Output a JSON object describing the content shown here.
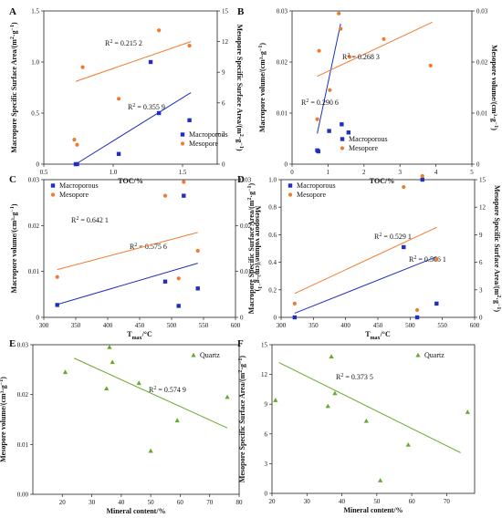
{
  "chart_data": [
    {
      "id": "A",
      "type": "scatter",
      "panel_label": "A",
      "xlabel": "TOC/%",
      "ylabel": "Macropore Specific Surface Area/(m²·g⁻¹)",
      "ylabel_right": "Mesopore Specific Surface Area/(m²·g⁻¹)",
      "xlim": [
        0.5,
        1.75
      ],
      "xticks": [
        "0.5",
        "1.0",
        "1.5"
      ],
      "xtick_values": [
        0.5,
        1.0,
        1.5
      ],
      "ylim": [
        0,
        1.5
      ],
      "yticks": [
        "0",
        "0.5",
        "1.0",
        "1.5"
      ],
      "ytick_values": [
        0,
        0.5,
        1.0,
        1.5
      ],
      "ylim_right": [
        0,
        15
      ],
      "yticks_right": [
        "0",
        "3",
        "6",
        "9",
        "12",
        "15"
      ],
      "ytick_values_right": [
        0,
        3,
        6,
        9,
        12,
        15
      ],
      "legend": [
        "Macroporous",
        "Mesopore"
      ],
      "series": [
        {
          "name": "Macroporous",
          "color": "#1f2fbf",
          "marker": "square",
          "axis": "left",
          "x": [
            0.73,
            0.74,
            1.04,
            1.27,
            1.33,
            1.55
          ],
          "y": [
            0.0,
            0.0,
            0.1,
            1.0,
            0.5,
            0.43
          ],
          "fit": {
            "x": [
              0.73,
              1.56
            ],
            "y": [
              0.0,
              0.7
            ]
          },
          "r2": "R² = 0.355 9"
        },
        {
          "name": "Mesopore",
          "color": "#f07b2e",
          "marker": "circle",
          "axis": "right",
          "x": [
            0.72,
            0.74,
            0.78,
            1.04,
            1.33,
            1.55
          ],
          "y": [
            2.4,
            1.9,
            9.5,
            6.4,
            13.1,
            11.6
          ],
          "fit": {
            "x": [
              0.73,
              1.56
            ],
            "y": [
              8.1,
              12.0
            ]
          },
          "r2": "R² = 0.215 2"
        }
      ]
    },
    {
      "id": "B",
      "type": "scatter",
      "panel_label": "B",
      "xlabel": "TOC/%",
      "ylabel": "Macropore  volume/(cm³·g⁻¹)",
      "ylabel_right": "Mesopore volume/(cm³·g⁻¹)",
      "xlim": [
        0,
        5
      ],
      "xticks": [
        "0",
        "1",
        "2",
        "3",
        "4",
        "5"
      ],
      "xtick_values": [
        0,
        1,
        2,
        3,
        4,
        5
      ],
      "ylim": [
        0,
        0.03
      ],
      "yticks": [
        "0",
        "0.01",
        "0.02",
        "0.03"
      ],
      "ytick_values": [
        0,
        0.01,
        0.02,
        0.03
      ],
      "ylim_right": [
        0,
        0.03
      ],
      "yticks_right": [
        "0",
        "0.01",
        "0.02",
        "0.03"
      ],
      "ytick_values_right": [
        0,
        0.01,
        0.02,
        0.03
      ],
      "legend": [
        "Macroporous",
        "Mesopore"
      ],
      "series": [
        {
          "name": "Macroporous",
          "color": "#1f2fbf",
          "marker": "square",
          "axis": "left",
          "x": [
            0.7,
            0.73,
            1.03,
            1.38,
            1.57
          ],
          "y": [
            0.0027,
            0.0025,
            0.0065,
            0.0078,
            0.0062
          ],
          "fit": {
            "x": [
              0.7,
              1.35
            ],
            "y": [
              0.006,
              0.0275
            ]
          },
          "r2": "R² = 0.290 6"
        },
        {
          "name": "Mesopore",
          "color": "#f07b2e",
          "marker": "circle",
          "axis": "right",
          "x": [
            0.7,
            0.75,
            1.05,
            1.3,
            1.35,
            1.6,
            2.55,
            3.85
          ],
          "y": [
            0.0088,
            0.0222,
            0.0145,
            0.0295,
            0.0265,
            0.021,
            0.0245,
            0.0193
          ],
          "fit": {
            "x": [
              0.7,
              3.9
            ],
            "y": [
              0.0172,
              0.0278
            ]
          },
          "r2": "R² = 0.268 3"
        }
      ]
    },
    {
      "id": "C",
      "type": "scatter",
      "panel_label": "C",
      "xlabel": "Tmax/°C",
      "ylabel": "Macropore  volume/(cm³·g⁻¹)",
      "ylabel_right": "Mesopore volume/(cm³·g⁻¹)",
      "xlim": [
        300,
        600
      ],
      "xticks": [
        "300",
        "350",
        "400",
        "450",
        "500",
        "550",
        "600"
      ],
      "xtick_values": [
        300,
        350,
        400,
        450,
        500,
        550,
        600
      ],
      "ylim": [
        0,
        0.03
      ],
      "yticks": [
        "0",
        "0.01",
        "0.02",
        "0.03"
      ],
      "ytick_values": [
        0,
        0.01,
        0.02,
        0.03
      ],
      "ylim_right": [
        0,
        0.03
      ],
      "yticks_right": [
        "0",
        "0.01",
        "0.02",
        "0.03"
      ],
      "ytick_values_right": [
        0,
        0.01,
        0.02,
        0.03
      ],
      "legend": [
        "Macroporous",
        "Mesopore"
      ],
      "series": [
        {
          "name": "Macroporous",
          "color": "#1f2fbf",
          "marker": "square",
          "axis": "left",
          "x": [
            321,
            490,
            511,
            519,
            541
          ],
          "y": [
            0.0027,
            0.0078,
            0.0025,
            0.0265,
            0.0063
          ],
          "fit": {
            "x": [
              321,
              541
            ],
            "y": [
              0.0028,
              0.0118
            ]
          },
          "r2": "R² = 0.575 6"
        },
        {
          "name": "Mesopore",
          "color": "#f07b2e",
          "marker": "circle",
          "axis": "right",
          "x": [
            321,
            490,
            511,
            519,
            541
          ],
          "y": [
            0.0088,
            0.0265,
            0.0085,
            0.0295,
            0.0145
          ],
          "fit": {
            "x": [
              321,
              541
            ],
            "y": [
              0.0104,
              0.0185
            ]
          },
          "r2": "R² = 0.642 1"
        }
      ]
    },
    {
      "id": "D",
      "type": "scatter",
      "panel_label": "D",
      "xlabel": "Tmax/°C",
      "ylabel": "Macropore Specific Surface Area/(m²·g⁻¹)",
      "ylabel_right": "Mesopore Specific Surface Area/(m²·g⁻¹)",
      "xlim": [
        300,
        600
      ],
      "xticks": [
        "300",
        "350",
        "400",
        "450",
        "500",
        "550",
        "600"
      ],
      "xtick_values": [
        300,
        350,
        400,
        450,
        500,
        550,
        600
      ],
      "ylim": [
        0,
        1.0
      ],
      "yticks": [
        "0",
        "0.2",
        "0.4",
        "0.6",
        "0.8",
        "1.0"
      ],
      "ytick_values": [
        0,
        0.2,
        0.4,
        0.6,
        0.8,
        1.0
      ],
      "ylim_right": [
        0,
        15
      ],
      "yticks_right": [
        "0",
        "3",
        "6",
        "9",
        "12",
        "15"
      ],
      "ytick_values_right": [
        0,
        3,
        6,
        9,
        12,
        15
      ],
      "legend": [
        "Macroporous",
        "Mesopore"
      ],
      "series": [
        {
          "name": "Macroporous",
          "color": "#1f2fbf",
          "marker": "square",
          "axis": "left",
          "x": [
            321,
            490,
            511,
            519,
            541
          ],
          "y": [
            0.0,
            0.51,
            0.0,
            1.0,
            0.1
          ],
          "fit": {
            "x": [
              321,
              541
            ],
            "y": [
              0.03,
              0.44
            ]
          },
          "r2": "R² = 0.566 1"
        },
        {
          "name": "Mesopore",
          "color": "#f07b2e",
          "marker": "circle",
          "axis": "right",
          "x": [
            321,
            490,
            511,
            519,
            541
          ],
          "y": [
            1.5,
            14.2,
            0.8,
            15.4,
            6.3
          ],
          "fit": {
            "x": [
              321,
              541
            ],
            "y": [
              2.6,
              9.8
            ]
          },
          "r2": "R² = 0.529 1"
        }
      ]
    },
    {
      "id": "E",
      "type": "scatter",
      "panel_label": "E",
      "xlabel": "Mineral content/%",
      "ylabel": "Mesopore volume/(cm³·g⁻¹)",
      "xlim": [
        10,
        80
      ],
      "xticks": [
        "20",
        "30",
        "40",
        "50",
        "60",
        "70",
        "80"
      ],
      "xtick_values": [
        20,
        30,
        40,
        50,
        60,
        70,
        80
      ],
      "ylim": [
        0,
        0.03
      ],
      "yticks": [
        "0.00",
        "0.01",
        "0.02",
        "0.03"
      ],
      "ytick_values": [
        0,
        0.01,
        0.02,
        0.03
      ],
      "legend": [
        "Quartz"
      ],
      "series": [
        {
          "name": "Quartz",
          "color": "#6aa82c",
          "marker": "triangle",
          "axis": "left",
          "x": [
            21,
            35,
            36,
            37,
            46,
            50,
            59,
            76
          ],
          "y": [
            0.0245,
            0.0212,
            0.0295,
            0.0265,
            0.0223,
            0.0087,
            0.0148,
            0.0195
          ],
          "fit": {
            "x": [
              24,
              76
            ],
            "y": [
              0.0273,
              0.0133
            ]
          },
          "r2": "R² = 0.574 9"
        }
      ]
    },
    {
      "id": "F",
      "type": "scatter",
      "panel_label": "F",
      "xlabel": "Mineral content/%",
      "ylabel": "Mesopore Specific Surface Area/(m²·g⁻¹)",
      "xlim": [
        20,
        78
      ],
      "xticks": [
        "20",
        "30",
        "40",
        "50",
        "60",
        "70"
      ],
      "xtick_values": [
        20,
        30,
        40,
        50,
        60,
        70
      ],
      "ylim": [
        0,
        15
      ],
      "yticks": [
        "0",
        "3",
        "6",
        "9",
        "12",
        "15"
      ],
      "ytick_values": [
        0,
        3,
        6,
        9,
        12,
        15
      ],
      "legend": [
        "Quartz"
      ],
      "series": [
        {
          "name": "Quartz",
          "color": "#6aa82c",
          "marker": "triangle",
          "axis": "left",
          "x": [
            21,
            36,
            37,
            38,
            47,
            51,
            59,
            76
          ],
          "y": [
            9.4,
            8.8,
            13.8,
            10.1,
            7.3,
            1.3,
            4.9,
            8.2
          ],
          "fit": {
            "x": [
              22,
              74
            ],
            "y": [
              13.2,
              4.1
            ]
          },
          "r2": "R² = 0.373 5"
        }
      ]
    }
  ]
}
